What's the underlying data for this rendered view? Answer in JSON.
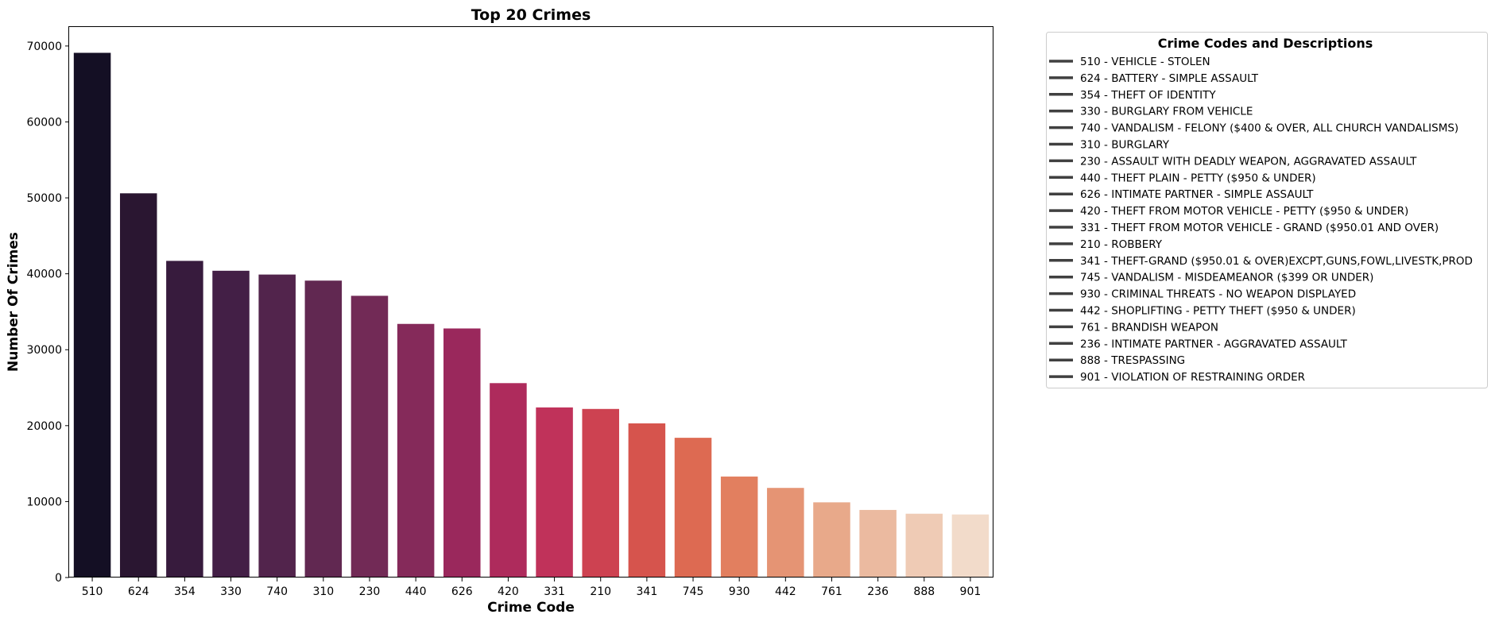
{
  "chart_data": {
    "type": "bar",
    "title": "Top 20 Crimes",
    "xlabel": "Crime Code",
    "ylabel": "Number Of Crimes",
    "ylim": [
      0,
      72500
    ],
    "yticks": [
      0,
      10000,
      20000,
      30000,
      40000,
      50000,
      60000,
      70000
    ],
    "grid": false,
    "categories": [
      "510",
      "624",
      "354",
      "330",
      "740",
      "310",
      "230",
      "440",
      "626",
      "420",
      "331",
      "210",
      "341",
      "745",
      "930",
      "442",
      "761",
      "236",
      "888",
      "901"
    ],
    "values": [
      69100,
      50600,
      41700,
      40400,
      39900,
      39100,
      37100,
      33400,
      32800,
      25600,
      22400,
      22200,
      20300,
      18400,
      13300,
      11800,
      9900,
      8900,
      8400,
      8300
    ],
    "colors": [
      "#140f24",
      "#2a1631",
      "#371b3d",
      "#431f46",
      "#52244c",
      "#612851",
      "#722a56",
      "#852a5a",
      "#9a285c",
      "#ae2b5c",
      "#c0325a",
      "#cd4251",
      "#d6544d",
      "#dd6a52",
      "#e27f5f",
      "#e59474",
      "#e8a98a",
      "#ebbaa0",
      "#efcbb5",
      "#f2dbca"
    ],
    "legend": {
      "title": "Crime Codes and Descriptions",
      "placement": "outside-right",
      "line_color": "#404040",
      "entries": [
        "510 - VEHICLE - STOLEN",
        "624 - BATTERY - SIMPLE ASSAULT",
        "354 - THEFT OF IDENTITY",
        "330 - BURGLARY FROM VEHICLE",
        "740 - VANDALISM - FELONY ($400 & OVER, ALL CHURCH VANDALISMS)",
        "310 - BURGLARY",
        "230 - ASSAULT WITH DEADLY WEAPON, AGGRAVATED ASSAULT",
        "440 - THEFT PLAIN - PETTY ($950 & UNDER)",
        "626 - INTIMATE PARTNER - SIMPLE ASSAULT",
        "420 - THEFT FROM MOTOR VEHICLE - PETTY ($950 & UNDER)",
        "331 - THEFT FROM MOTOR VEHICLE - GRAND ($950.01 AND OVER)",
        "210 - ROBBERY",
        "341 - THEFT-GRAND ($950.01 & OVER)EXCPT,GUNS,FOWL,LIVESTK,PROD",
        "745 - VANDALISM - MISDEAMEANOR ($399 OR UNDER)",
        "930 - CRIMINAL THREATS - NO WEAPON DISPLAYED",
        "442 - SHOPLIFTING - PETTY THEFT ($950 & UNDER)",
        "761 - BRANDISH WEAPON",
        "236 - INTIMATE PARTNER - AGGRAVATED ASSAULT",
        "888 - TRESPASSING",
        "901 - VIOLATION OF RESTRAINING ORDER"
      ]
    }
  }
}
